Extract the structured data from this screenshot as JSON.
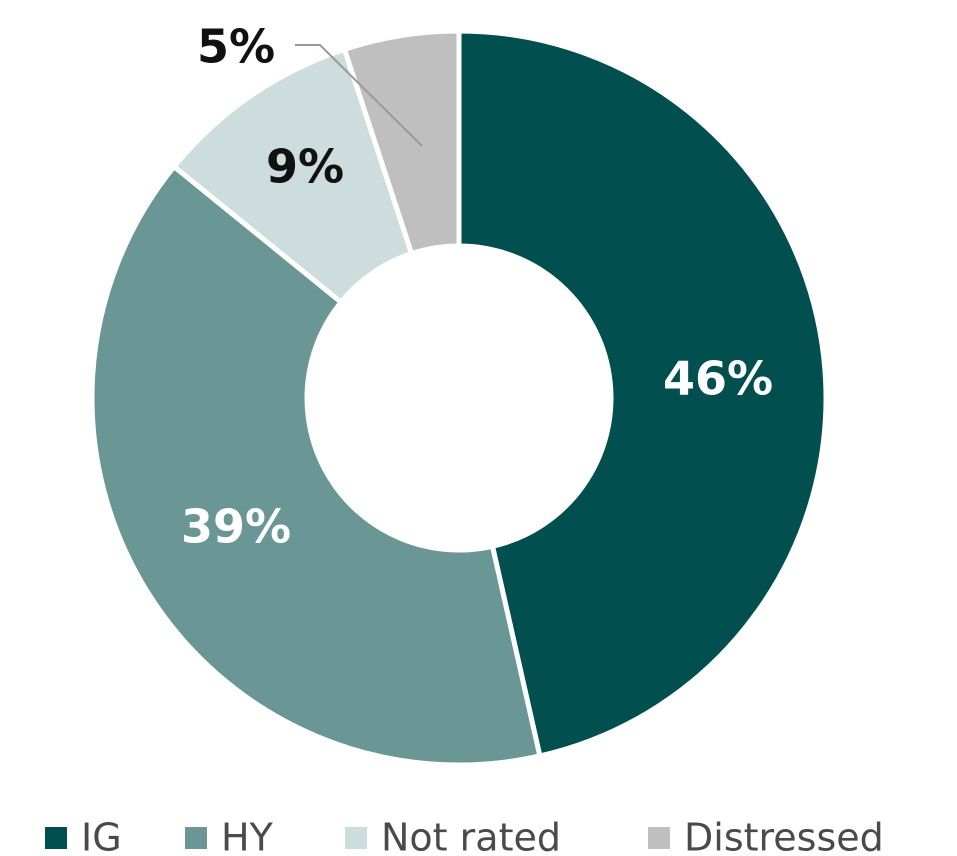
{
  "chart_data": {
    "type": "donut",
    "categories": [
      "IG",
      "HY",
      "Not rated",
      "Distressed"
    ],
    "values": [
      46,
      39,
      9,
      5
    ],
    "value_labels": [
      "46%",
      "39%",
      "9%",
      "5%"
    ],
    "colors": [
      "#014f4f",
      "#6a9695",
      "#cddcdc",
      "#bfbfbf"
    ],
    "legend": "bottom"
  }
}
